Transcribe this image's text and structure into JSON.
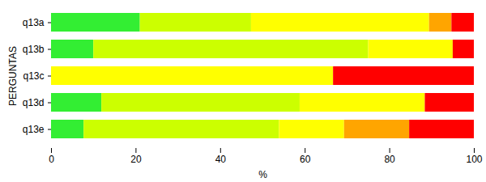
{
  "chart_data": {
    "type": "bar",
    "orientation": "horizontal",
    "stacked": true,
    "grid": false,
    "xlabel": "%",
    "ylabel": "PERGUNTAS",
    "categories": [
      "q13a",
      "q13b",
      "q13c",
      "q13d",
      "q13e"
    ],
    "series": [
      {
        "color": "#33ee33",
        "values": [
          21,
          10,
          0,
          11.9,
          7.7
        ]
      },
      {
        "color": "#ccff00",
        "values": [
          26.3,
          65,
          0,
          46.9,
          46.2
        ]
      },
      {
        "color": "#ffff00",
        "values": [
          42.1,
          20,
          66.7,
          29.6,
          15.4
        ]
      },
      {
        "color": "#ffa500",
        "values": [
          5.3,
          0,
          0,
          0,
          15.4
        ]
      },
      {
        "color": "#ff0000",
        "values": [
          5.3,
          5,
          33.3,
          11.6,
          15.3
        ]
      }
    ],
    "xlim": [
      0,
      100
    ],
    "xticks": [
      0,
      20,
      40,
      60,
      80,
      100
    ]
  }
}
